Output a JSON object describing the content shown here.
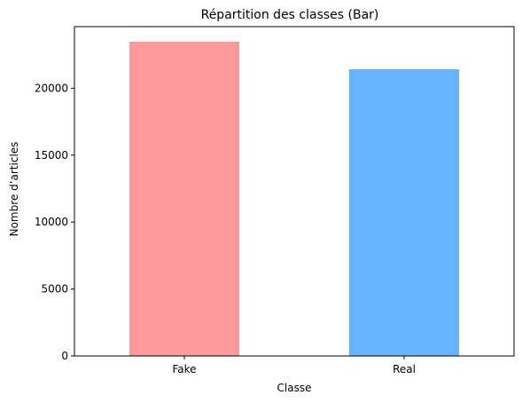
{
  "chart_data": {
    "type": "bar",
    "title": "Répartition des classes (Bar)",
    "xlabel": "Classe",
    "ylabel": "Nombre d’articles",
    "categories": [
      "Fake",
      "Real"
    ],
    "values": [
      23481,
      21417
    ],
    "colors": [
      "#ff9999",
      "#66b3ff"
    ],
    "ylim": [
      0,
      24600
    ],
    "yticks": [
      0,
      5000,
      10000,
      15000,
      20000
    ],
    "grid": false,
    "legend": "none"
  }
}
